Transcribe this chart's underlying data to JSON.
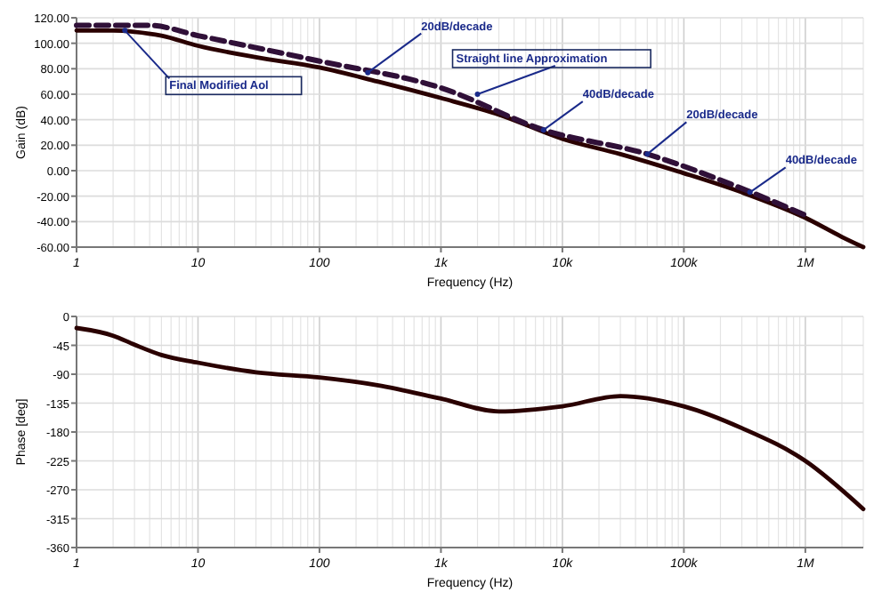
{
  "chart_data": [
    {
      "type": "line",
      "xlabel": "Frequency (Hz)",
      "ylabel": "Gain (dB)",
      "log": "x",
      "grid": true,
      "xlim": [
        1,
        3000000
      ],
      "ylim": [
        -60,
        120
      ],
      "xticks": [
        1,
        10,
        100,
        {
          "value": 1000,
          "label": "1k"
        },
        {
          "value": 10000,
          "label": "10k"
        },
        {
          "value": 100000,
          "label": "100k"
        },
        {
          "value": 1000000,
          "label": "1M"
        }
      ],
      "yticks": [
        {
          "value": -60,
          "label": "-60.00"
        },
        {
          "value": -40,
          "label": "-40.00"
        },
        {
          "value": -20,
          "label": "-20.00"
        },
        {
          "value": 0,
          "label": "0.00"
        },
        {
          "value": 20,
          "label": "20.00"
        },
        {
          "value": 40,
          "label": "40.00"
        },
        {
          "value": 60,
          "label": "60.00"
        },
        {
          "value": 80,
          "label": "80.00"
        },
        {
          "value": 100,
          "label": "100.00"
        },
        {
          "value": 120,
          "label": "120.00"
        }
      ],
      "series": [
        {
          "color": "#2a0000",
          "line_style": "solid",
          "x": [
            1,
            2,
            3,
            5,
            10,
            30,
            100,
            300,
            1000,
            3000,
            10000,
            30000,
            100000,
            300000,
            1000000,
            2000000,
            3000000
          ],
          "values": [
            110,
            110,
            109,
            106,
            98,
            89,
            81,
            70,
            57,
            44,
            25,
            13,
            -2,
            -17,
            -37,
            -52,
            -60
          ]
        },
        {
          "color": "#301038",
          "line_style": "dashed",
          "x": [
            1,
            2,
            4,
            10,
            100,
            1000,
            7000,
            50000,
            300000,
            1000000
          ],
          "values": [
            114,
            114,
            114,
            106,
            86,
            65,
            32,
            13,
            -14,
            -35
          ]
        }
      ],
      "annotations": [
        {
          "text": "Final Modified Aol",
          "x": 2.5,
          "y": 110
        },
        {
          "text": "20dB/decade",
          "x": 250,
          "y": 77
        },
        {
          "text": "Straight line Approximation",
          "x": 2000,
          "y": 60
        },
        {
          "text": "40dB/decade",
          "x": 7000,
          "y": 32
        },
        {
          "text": "20dB/decade",
          "x": 50000,
          "y": 13
        },
        {
          "text": "40dB/decade",
          "x": 350000,
          "y": -17
        }
      ]
    },
    {
      "type": "line",
      "xlabel": "Frequency (Hz)",
      "ylabel": "Phase [deg]",
      "log": "x",
      "grid": true,
      "xlim": [
        1,
        3000000
      ],
      "ylim": [
        -360,
        0
      ],
      "xticks": [
        1,
        10,
        100,
        {
          "value": 1000,
          "label": "1k"
        },
        {
          "value": 10000,
          "label": "10k"
        },
        {
          "value": 100000,
          "label": "100k"
        },
        {
          "value": 1000000,
          "label": "1M"
        }
      ],
      "yticks": [
        -360,
        -315,
        -270,
        -225,
        -180,
        -135,
        -90,
        -45,
        0
      ],
      "series": [
        {
          "color": "#2a0000",
          "line_style": "solid",
          "x": [
            1,
            2,
            3,
            5,
            10,
            30,
            100,
            300,
            1000,
            3000,
            10000,
            30000,
            100000,
            300000,
            1000000,
            3000000
          ],
          "values": [
            -18,
            -30,
            -44,
            -60,
            -72,
            -87,
            -95,
            -107,
            -128,
            -148,
            -140,
            -124,
            -140,
            -174,
            -225,
            -300
          ]
        }
      ]
    }
  ]
}
